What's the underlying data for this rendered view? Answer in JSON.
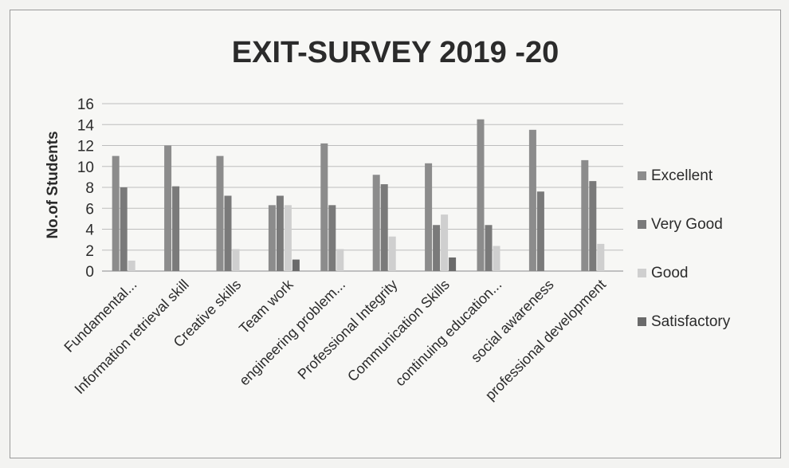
{
  "chart_data": {
    "type": "bar",
    "title": "EXIT-SURVEY 2019 -20",
    "xlabel": "",
    "ylabel": "No.of Students",
    "ylim": [
      0,
      16
    ],
    "yticks": [
      0,
      2,
      4,
      6,
      8,
      10,
      12,
      14,
      16
    ],
    "grid": true,
    "legend_position": "right",
    "categories": [
      "Fundamental...",
      "Information retrieval skill",
      "Creative skills",
      "Team work",
      "engineering problem...",
      "Professional Integrity",
      "Communication Skills",
      "continuing education...",
      "social awareness",
      "professional development"
    ],
    "series": [
      {
        "name": "Excellent",
        "color": "#8c8c8c",
        "values": [
          11,
          12,
          11,
          6.3,
          12.2,
          9.2,
          10.3,
          14.5,
          13.5,
          10.6
        ]
      },
      {
        "name": "Very Good",
        "color": "#7a7a7a",
        "values": [
          8,
          8.1,
          7.2,
          7.2,
          6.3,
          8.3,
          4.4,
          4.4,
          7.6,
          8.6
        ]
      },
      {
        "name": "Good",
        "color": "#cfcfcf",
        "values": [
          1,
          0,
          2.1,
          6.3,
          2.1,
          3.3,
          5.4,
          2.4,
          0,
          2.6
        ]
      },
      {
        "name": "Satisfactory",
        "color": "#6a6a6a",
        "values": [
          0,
          0,
          0,
          1.1,
          0,
          0,
          1.3,
          0,
          0,
          0
        ]
      }
    ]
  }
}
